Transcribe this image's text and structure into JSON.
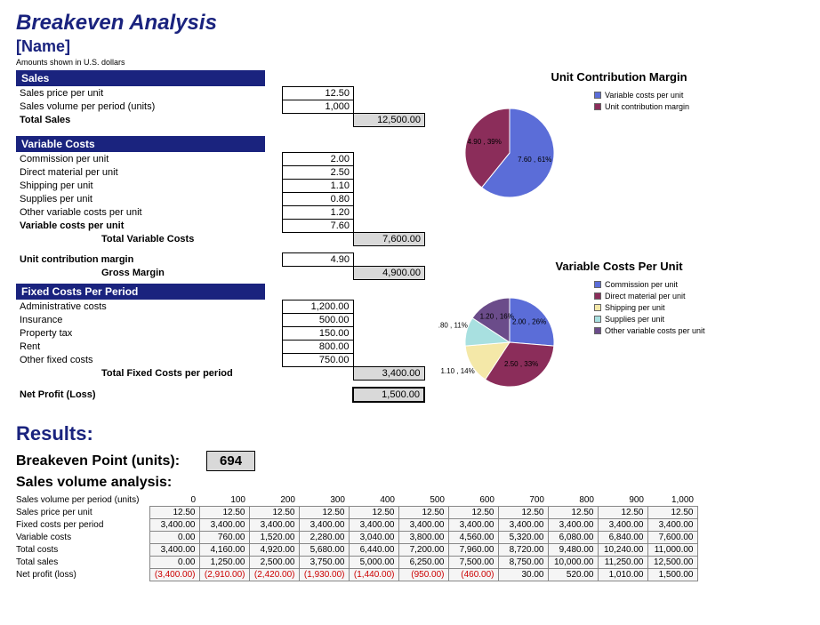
{
  "title": "Breakeven Analysis",
  "subtitle": "[Name]",
  "note": "Amounts shown in U.S. dollars",
  "colors": {
    "navy": "#1a237e",
    "cell_border": "#000000",
    "total_bg": "#d9d9d9",
    "negative": "#cc0000"
  },
  "sections": {
    "sales": {
      "header": "Sales",
      "rows": [
        {
          "label": "Sales price per unit",
          "value": "12.50"
        },
        {
          "label": "Sales volume per period (units)",
          "value": "1,000"
        }
      ],
      "total": {
        "label": "Total Sales",
        "value": "12,500.00"
      }
    },
    "variable": {
      "header": "Variable Costs",
      "rows": [
        {
          "label": "Commission per unit",
          "value": "2.00"
        },
        {
          "label": "Direct material per unit",
          "value": "2.50"
        },
        {
          "label": "Shipping per unit",
          "value": "1.10"
        },
        {
          "label": "Supplies per unit",
          "value": "0.80"
        },
        {
          "label": "Other variable costs per unit",
          "value": "1.20"
        }
      ],
      "subtotal": {
        "label": "Variable costs per unit",
        "value": "7.60"
      },
      "total": {
        "label": "Total Variable Costs",
        "value": "7,600.00"
      },
      "ucm": {
        "label": "Unit contribution margin",
        "value": "4.90"
      },
      "gross": {
        "label": "Gross Margin",
        "value": "4,900.00"
      }
    },
    "fixed": {
      "header": "Fixed Costs Per Period",
      "rows": [
        {
          "label": "Administrative costs",
          "value": "1,200.00"
        },
        {
          "label": "Insurance",
          "value": "500.00"
        },
        {
          "label": "Property tax",
          "value": "150.00"
        },
        {
          "label": "Rent",
          "value": "800.00"
        },
        {
          "label": "Other fixed costs",
          "value": "750.00"
        }
      ],
      "total": {
        "label": "Total Fixed Costs per period",
        "value": "3,400.00"
      },
      "net": {
        "label": "Net Profit (Loss)",
        "value": "1,500.00"
      }
    }
  },
  "pie1": {
    "title": "Unit Contribution Margin",
    "slices": [
      {
        "label": "Variable costs per unit",
        "value": 7.6,
        "percent": 61,
        "color": "#5b6dd8",
        "text": "7.60 , 61%"
      },
      {
        "label": "Unit contribution margin",
        "value": 4.9,
        "percent": 39,
        "color": "#8b2d5a",
        "text": "4.90 , 39%"
      }
    ]
  },
  "pie2": {
    "title": "Variable Costs Per Unit",
    "slices": [
      {
        "label": "Commission per unit",
        "value": 2.0,
        "percent": 26,
        "color": "#5b6dd8",
        "text": "2.00 , 26%"
      },
      {
        "label": "Direct material per unit",
        "value": 2.5,
        "percent": 33,
        "color": "#8b2d5a",
        "text": "2.50 , 33%"
      },
      {
        "label": "Shipping per unit",
        "value": 1.1,
        "percent": 14,
        "color": "#f4e8a8",
        "text": "1.10 , 14%"
      },
      {
        "label": "Supplies per unit",
        "value": 0.8,
        "percent": 11,
        "color": "#a8e0e0",
        "text": "0.80 , 11%"
      },
      {
        "label": "Other variable costs per unit",
        "value": 1.2,
        "percent": 16,
        "color": "#6b4c8a",
        "text": "1.20 , 16%"
      }
    ]
  },
  "results": {
    "header": "Results:",
    "be_label": "Breakeven Point (units):",
    "be_value": "694",
    "sva_header": "Sales volume analysis:",
    "row_labels": [
      "Sales volume per period (units)",
      "Sales price per unit",
      "Fixed costs per period",
      "Variable costs",
      "Total costs",
      "Total sales",
      "Net profit (loss)"
    ],
    "columns": [
      "0",
      "100",
      "200",
      "300",
      "400",
      "500",
      "600",
      "700",
      "800",
      "900",
      "1,000"
    ],
    "rows": [
      [
        "0",
        "100",
        "200",
        "300",
        "400",
        "500",
        "600",
        "700",
        "800",
        "900",
        "1,000"
      ],
      [
        "12.50",
        "12.50",
        "12.50",
        "12.50",
        "12.50",
        "12.50",
        "12.50",
        "12.50",
        "12.50",
        "12.50",
        "12.50"
      ],
      [
        "3,400.00",
        "3,400.00",
        "3,400.00",
        "3,400.00",
        "3,400.00",
        "3,400.00",
        "3,400.00",
        "3,400.00",
        "3,400.00",
        "3,400.00",
        "3,400.00"
      ],
      [
        "0.00",
        "760.00",
        "1,520.00",
        "2,280.00",
        "3,040.00",
        "3,800.00",
        "4,560.00",
        "5,320.00",
        "6,080.00",
        "6,840.00",
        "7,600.00"
      ],
      [
        "3,400.00",
        "4,160.00",
        "4,920.00",
        "5,680.00",
        "6,440.00",
        "7,200.00",
        "7,960.00",
        "8,720.00",
        "9,480.00",
        "10,240.00",
        "11,000.00"
      ],
      [
        "0.00",
        "1,250.00",
        "2,500.00",
        "3,750.00",
        "5,000.00",
        "6,250.00",
        "7,500.00",
        "8,750.00",
        "10,000.00",
        "11,250.00",
        "12,500.00"
      ],
      [
        "(3,400.00)",
        "(2,910.00)",
        "(2,420.00)",
        "(1,930.00)",
        "(1,440.00)",
        "(950.00)",
        "(460.00)",
        "30.00",
        "520.00",
        "1,010.00",
        "1,500.00"
      ]
    ],
    "neg_row_index": 6,
    "neg_col_until": 6
  }
}
